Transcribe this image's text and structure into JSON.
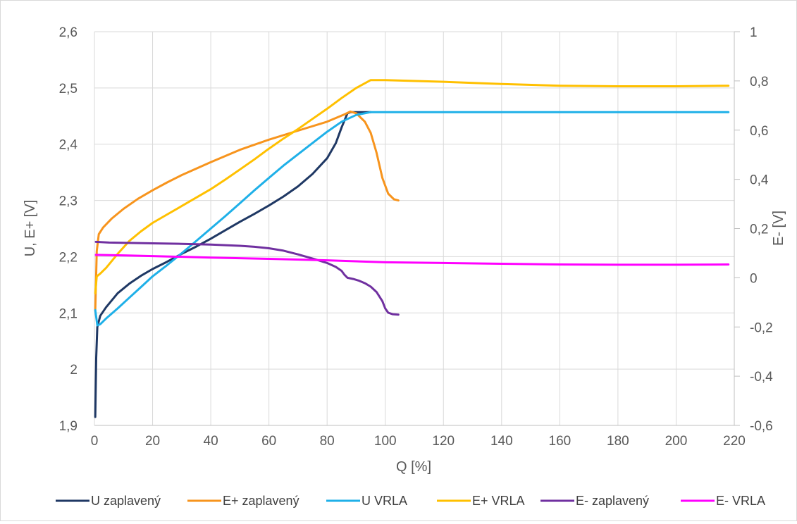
{
  "chart_data": {
    "type": "line",
    "title": "",
    "xlabel": "Q [%]",
    "ylabel": "U, E+ [V]",
    "y2label": "E- [V]",
    "xlim": [
      0,
      220
    ],
    "ylim": [
      1.9,
      2.6
    ],
    "y2lim": [
      -0.6,
      1.0
    ],
    "x_ticks": [
      "0",
      "20",
      "40",
      "60",
      "80",
      "100",
      "120",
      "140",
      "160",
      "180",
      "200",
      "220"
    ],
    "y_ticks": [
      "1,9",
      "2",
      "2,1",
      "2,2",
      "2,3",
      "2,4",
      "2,5",
      "2,6"
    ],
    "y2_ticks": [
      "-0,6",
      "-0,4",
      "-0,2",
      "0",
      "0,2",
      "0,4",
      "0,6",
      "0,8",
      "1"
    ],
    "grid": true,
    "legend_position": "bottom",
    "series": [
      {
        "name": "U zaplavený",
        "color": "#1f3864",
        "axis": "left",
        "points": [
          [
            0.3,
            1.915
          ],
          [
            0.6,
            2.02
          ],
          [
            1,
            2.075
          ],
          [
            2,
            2.095
          ],
          [
            4,
            2.11
          ],
          [
            8,
            2.135
          ],
          [
            12,
            2.152
          ],
          [
            16,
            2.166
          ],
          [
            20,
            2.178
          ],
          [
            25,
            2.191
          ],
          [
            30,
            2.205
          ],
          [
            35,
            2.218
          ],
          [
            40,
            2.232
          ],
          [
            45,
            2.247
          ],
          [
            50,
            2.262
          ],
          [
            55,
            2.276
          ],
          [
            60,
            2.291
          ],
          [
            65,
            2.307
          ],
          [
            70,
            2.325
          ],
          [
            75,
            2.347
          ],
          [
            80,
            2.375
          ],
          [
            83,
            2.402
          ],
          [
            85,
            2.43
          ],
          [
            87,
            2.455
          ],
          [
            88,
            2.457
          ],
          [
            95,
            2.457
          ]
        ]
      },
      {
        "name": "E+ zaplavený",
        "color": "#f7941d",
        "axis": "left",
        "points": [
          [
            0.3,
            2.105
          ],
          [
            0.8,
            2.21
          ],
          [
            1.5,
            2.24
          ],
          [
            3,
            2.252
          ],
          [
            6,
            2.268
          ],
          [
            10,
            2.285
          ],
          [
            15,
            2.303
          ],
          [
            20,
            2.318
          ],
          [
            25,
            2.332
          ],
          [
            30,
            2.345
          ],
          [
            40,
            2.368
          ],
          [
            50,
            2.39
          ],
          [
            60,
            2.408
          ],
          [
            70,
            2.424
          ],
          [
            80,
            2.44
          ],
          [
            86,
            2.453
          ],
          [
            88,
            2.458
          ],
          [
            90,
            2.455
          ],
          [
            93,
            2.44
          ],
          [
            95,
            2.42
          ],
          [
            97,
            2.385
          ],
          [
            99,
            2.34
          ],
          [
            101,
            2.312
          ],
          [
            103,
            2.302
          ],
          [
            104.5,
            2.3
          ]
        ]
      },
      {
        "name": "U VRLA",
        "color": "#1fb0e8",
        "axis": "left",
        "points": [
          [
            0.3,
            2.105
          ],
          [
            1,
            2.078
          ],
          [
            2,
            2.08
          ],
          [
            4,
            2.09
          ],
          [
            8,
            2.108
          ],
          [
            12,
            2.127
          ],
          [
            16,
            2.146
          ],
          [
            20,
            2.165
          ],
          [
            25,
            2.185
          ],
          [
            30,
            2.206
          ],
          [
            35,
            2.228
          ],
          [
            40,
            2.25
          ],
          [
            45,
            2.272
          ],
          [
            50,
            2.295
          ],
          [
            55,
            2.318
          ],
          [
            60,
            2.34
          ],
          [
            65,
            2.362
          ],
          [
            70,
            2.382
          ],
          [
            75,
            2.402
          ],
          [
            80,
            2.422
          ],
          [
            85,
            2.44
          ],
          [
            90,
            2.452
          ],
          [
            95,
            2.457
          ],
          [
            100,
            2.457
          ],
          [
            130,
            2.457
          ],
          [
            160,
            2.457
          ],
          [
            190,
            2.457
          ],
          [
            218,
            2.457
          ]
        ]
      },
      {
        "name": "E+ VRLA",
        "color": "#ffc000",
        "axis": "left",
        "points": [
          [
            0.3,
            2.135
          ],
          [
            0.8,
            2.165
          ],
          [
            2,
            2.17
          ],
          [
            4,
            2.18
          ],
          [
            8,
            2.205
          ],
          [
            12,
            2.228
          ],
          [
            16,
            2.245
          ],
          [
            20,
            2.26
          ],
          [
            25,
            2.275
          ],
          [
            30,
            2.29
          ],
          [
            35,
            2.305
          ],
          [
            40,
            2.32
          ],
          [
            45,
            2.337
          ],
          [
            50,
            2.355
          ],
          [
            55,
            2.373
          ],
          [
            60,
            2.392
          ],
          [
            65,
            2.41
          ],
          [
            70,
            2.427
          ],
          [
            75,
            2.445
          ],
          [
            80,
            2.463
          ],
          [
            85,
            2.482
          ],
          [
            90,
            2.5
          ],
          [
            95,
            2.514
          ],
          [
            100,
            2.514
          ],
          [
            120,
            2.511
          ],
          [
            140,
            2.507
          ],
          [
            160,
            2.504
          ],
          [
            180,
            2.503
          ],
          [
            200,
            2.503
          ],
          [
            218,
            2.504
          ]
        ]
      },
      {
        "name": "E- zaplavený",
        "color": "#7030a0",
        "axis": "right",
        "points": [
          [
            0.5,
            0.146
          ],
          [
            5,
            0.143
          ],
          [
            10,
            0.142
          ],
          [
            20,
            0.14
          ],
          [
            30,
            0.138
          ],
          [
            40,
            0.135
          ],
          [
            50,
            0.13
          ],
          [
            55,
            0.126
          ],
          [
            60,
            0.12
          ],
          [
            65,
            0.11
          ],
          [
            70,
            0.095
          ],
          [
            75,
            0.078
          ],
          [
            80,
            0.06
          ],
          [
            83,
            0.044
          ],
          [
            85,
            0.028
          ],
          [
            86,
            0.012
          ],
          [
            87,
            0.0
          ],
          [
            89,
            -0.005
          ],
          [
            91,
            -0.012
          ],
          [
            93,
            -0.022
          ],
          [
            95,
            -0.036
          ],
          [
            97,
            -0.058
          ],
          [
            99,
            -0.095
          ],
          [
            100,
            -0.125
          ],
          [
            101,
            -0.142
          ],
          [
            102.5,
            -0.148
          ],
          [
            104.5,
            -0.15
          ]
        ]
      },
      {
        "name": "E- VRLA",
        "color": "#ff00ff",
        "axis": "right",
        "points": [
          [
            0.5,
            0.093
          ],
          [
            10,
            0.091
          ],
          [
            20,
            0.088
          ],
          [
            40,
            0.082
          ],
          [
            60,
            0.077
          ],
          [
            80,
            0.071
          ],
          [
            100,
            0.063
          ],
          [
            120,
            0.06
          ],
          [
            140,
            0.057
          ],
          [
            160,
            0.054
          ],
          [
            180,
            0.053
          ],
          [
            200,
            0.053
          ],
          [
            218,
            0.054
          ]
        ]
      }
    ]
  }
}
